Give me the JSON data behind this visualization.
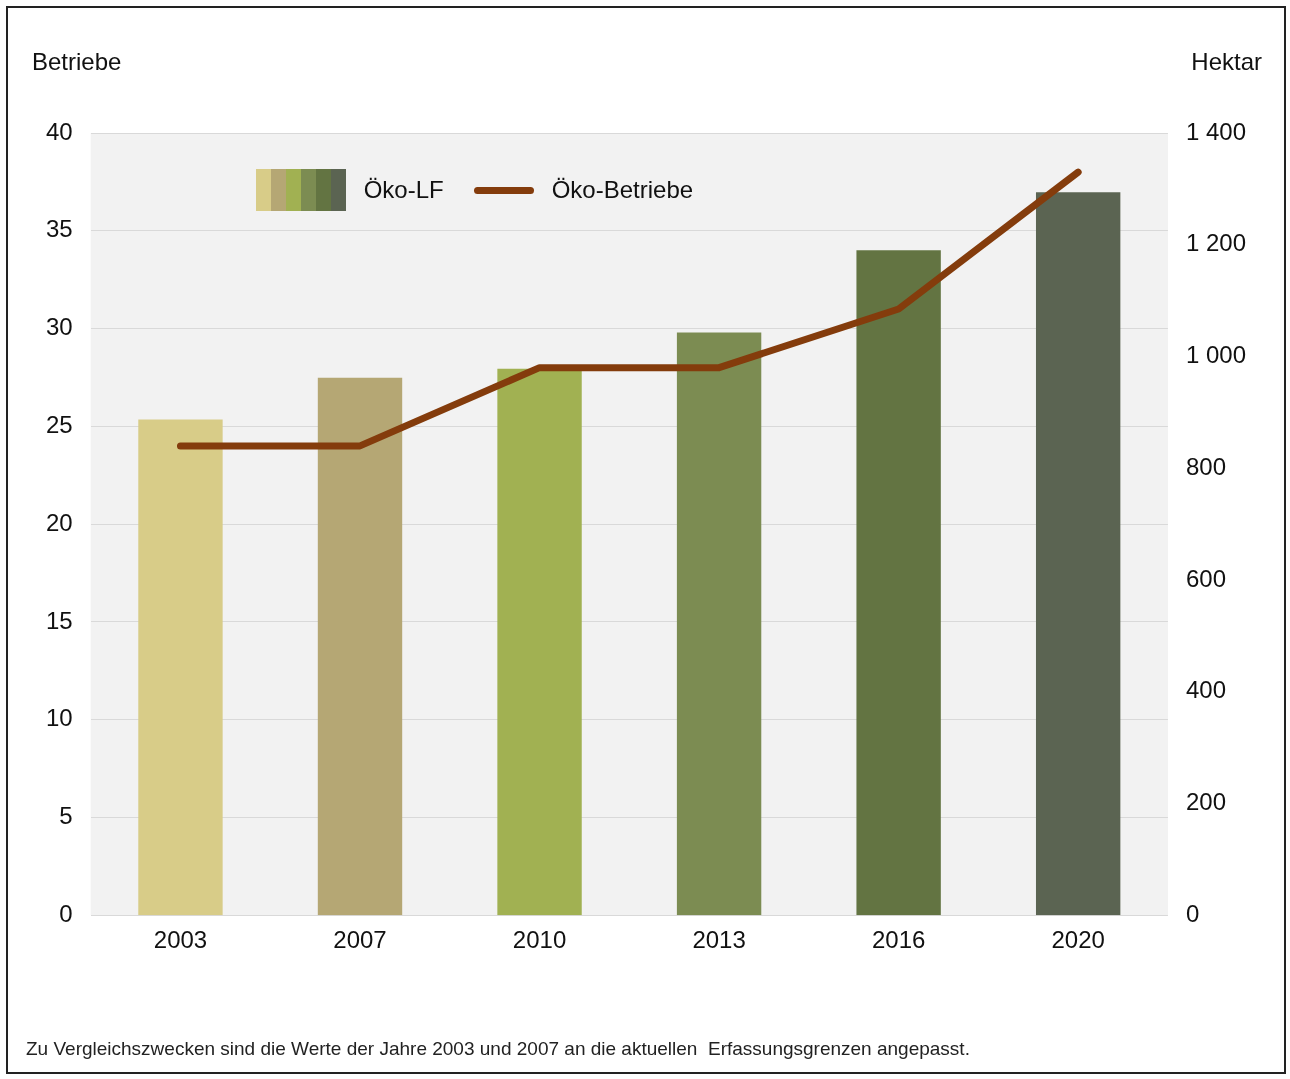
{
  "chart_data": {
    "type": "bar",
    "categories": [
      "2003",
      "2007",
      "2010",
      "2013",
      "2016",
      "2020"
    ],
    "ylabel": "Betriebe",
    "y2label": "Hektar",
    "series": [
      {
        "name": "Öko-LF",
        "axis": "y2",
        "colors": [
          "#d8cc88",
          "#b5a774",
          "#a1b152",
          "#7c8c52",
          "#637442",
          "#5b6452"
        ],
        "values": [
          887,
          962,
          978,
          1043,
          1190,
          1294
        ]
      },
      {
        "name": "Öko-Betriebe",
        "type": "line",
        "axis": "y",
        "color": "#843c0c",
        "values": [
          24,
          24,
          28,
          28,
          31,
          38
        ]
      }
    ],
    "ylim": [
      0,
      40
    ],
    "yticks": [
      0,
      5,
      10,
      15,
      20,
      25,
      30,
      35,
      40
    ],
    "y2lim": [
      0,
      1400
    ],
    "y2ticks": [
      0,
      200,
      400,
      600,
      800,
      {
        "value": 1000,
        "label": "1 000"
      },
      {
        "value": 1200,
        "label": "1 200"
      },
      {
        "value": 1400,
        "label": "1 400"
      }
    ],
    "grid": "y",
    "legend": "top left",
    "line_style": "solid",
    "annotations": [
      "Zu Vergleichszwecken sind die Werte der Jahre 2003 und 2007 an die aktuellen  Erfassungsgrenzen angepasst."
    ]
  }
}
